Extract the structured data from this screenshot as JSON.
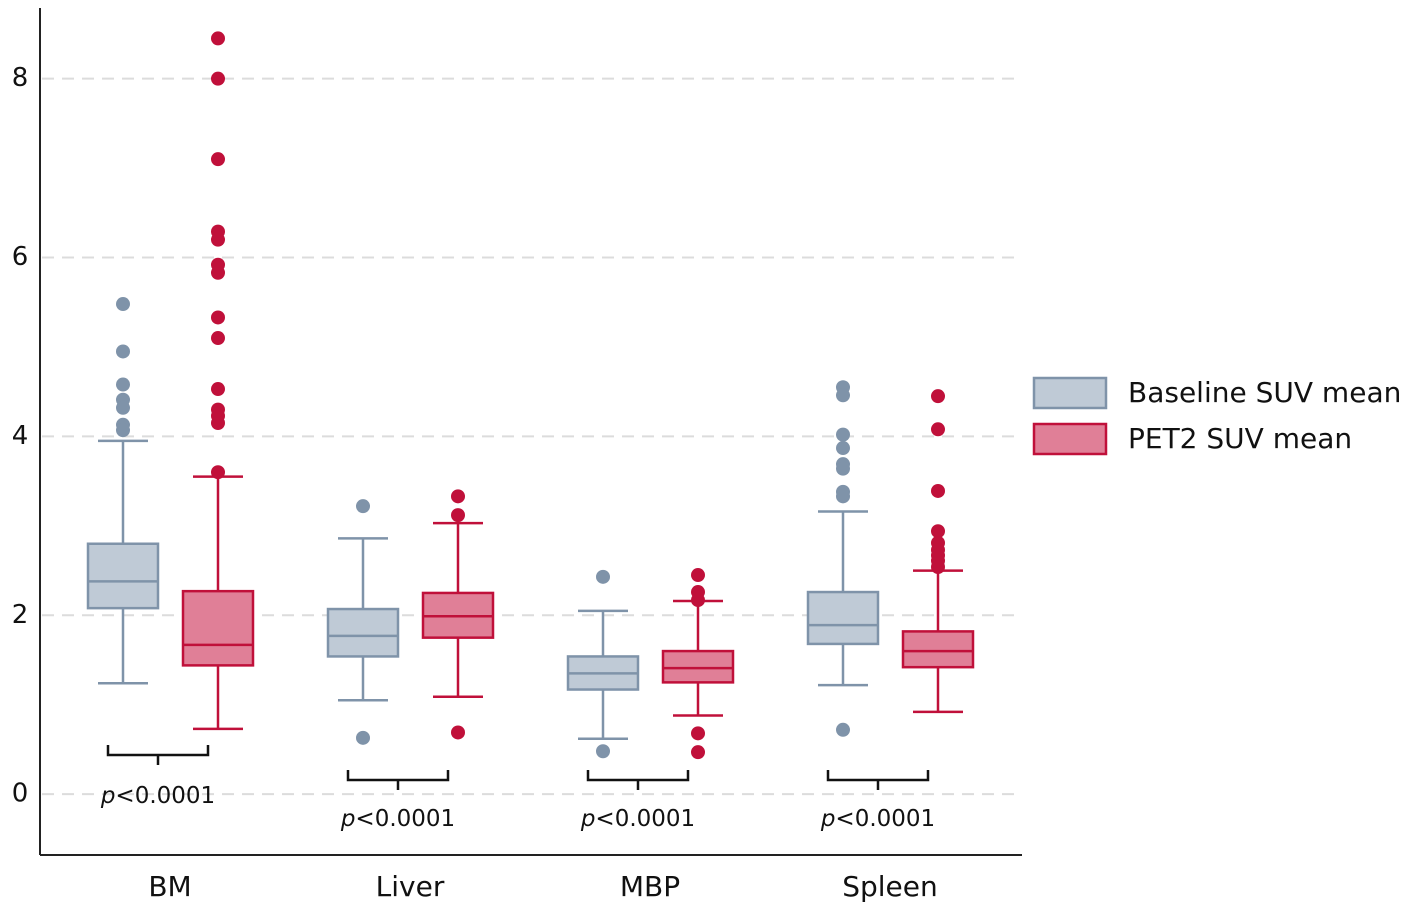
{
  "chart_data": {
    "type": "box",
    "categories": [
      "BM",
      "Liver",
      "MBP",
      "Spleen"
    ],
    "series": [
      {
        "name": "Baseline SUV mean",
        "color": "#7f93a9",
        "fill": "#bfcad6",
        "stats": [
          {
            "whislo": 1.24,
            "q1": 2.08,
            "med": 2.38,
            "q3": 2.8,
            "whishi": 3.95,
            "fliers": [
              5.48,
              4.95,
              4.58,
              4.41,
              4.32,
              4.13,
              4.07
            ]
          },
          {
            "whislo": 1.05,
            "q1": 1.54,
            "med": 1.77,
            "q3": 2.07,
            "whishi": 2.86,
            "fliers": [
              3.22,
              0.63
            ]
          },
          {
            "whislo": 0.62,
            "q1": 1.17,
            "med": 1.35,
            "q3": 1.54,
            "whishi": 2.05,
            "fliers": [
              2.43,
              0.48
            ]
          },
          {
            "whislo": 1.22,
            "q1": 1.68,
            "med": 1.89,
            "q3": 2.26,
            "whishi": 3.16,
            "fliers": [
              4.55,
              4.46,
              4.02,
              3.87,
              3.69,
              3.64,
              3.38,
              3.33,
              0.72
            ]
          }
        ]
      },
      {
        "name": "PET2 SUV mean",
        "color": "#c0103a",
        "fill": "#e07f97",
        "stats": [
          {
            "whislo": 0.73,
            "q1": 1.44,
            "med": 1.67,
            "q3": 2.27,
            "whishi": 3.55,
            "fliers": [
              8.45,
              8.0,
              7.1,
              6.29,
              6.2,
              5.92,
              5.83,
              5.33,
              5.1,
              4.53,
              4.3,
              4.23,
              4.15,
              3.6
            ]
          },
          {
            "whislo": 1.09,
            "q1": 1.75,
            "med": 1.99,
            "q3": 2.25,
            "whishi": 3.03,
            "fliers": [
              3.33,
              3.12,
              0.69
            ]
          },
          {
            "whislo": 0.88,
            "q1": 1.25,
            "med": 1.41,
            "q3": 1.6,
            "whishi": 2.16,
            "fliers": [
              2.45,
              2.26,
              2.17,
              0.68,
              0.47
            ]
          },
          {
            "whislo": 0.92,
            "q1": 1.42,
            "med": 1.6,
            "q3": 1.82,
            "whishi": 2.5,
            "fliers": [
              4.45,
              4.08,
              3.39,
              2.94,
              2.81,
              2.73,
              2.67,
              2.61,
              2.54
            ]
          }
        ]
      }
    ],
    "annotations": [
      "p<0.0001",
      "p<0.0001",
      "p<0.0001",
      "p<0.0001"
    ],
    "ylim": [
      -0.68,
      8.79
    ],
    "yticks": [
      0,
      2,
      4,
      6,
      8
    ],
    "grid": true,
    "legend": "right"
  }
}
